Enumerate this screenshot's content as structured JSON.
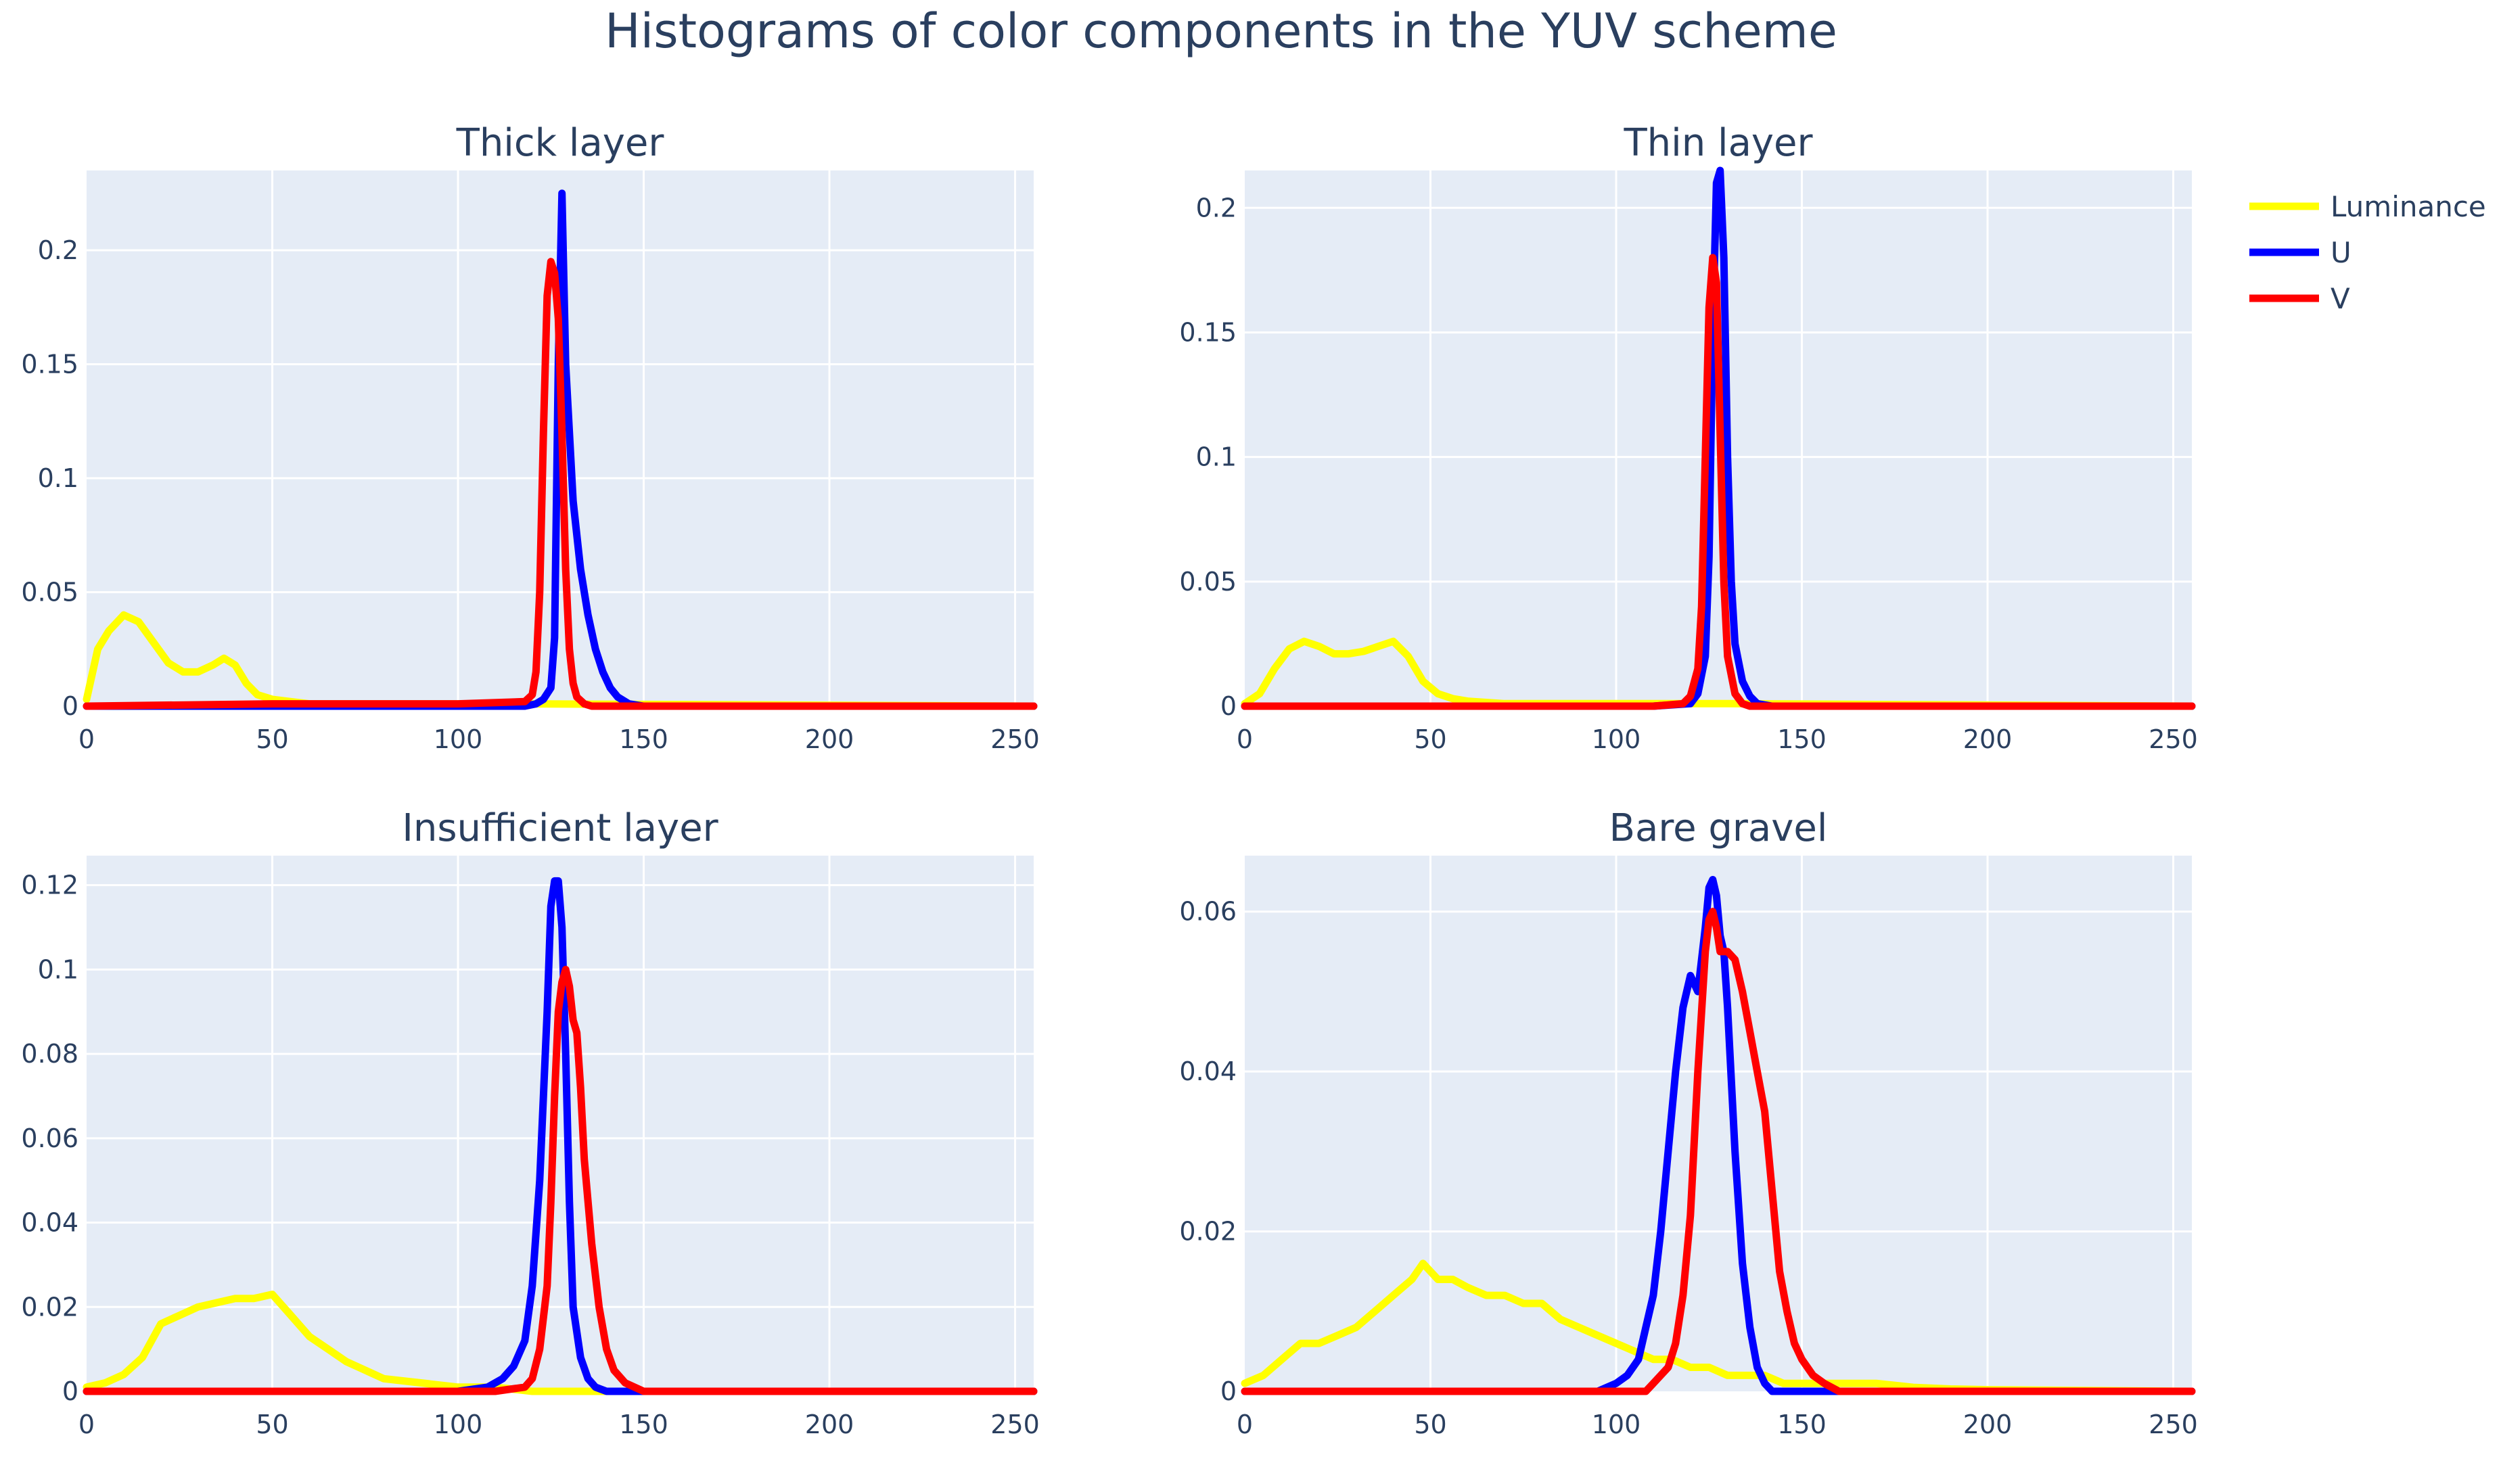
{
  "title": "Histograms of color components in the YUV scheme",
  "colors": {
    "luminance": "#ffff00",
    "u": "#0000ff",
    "v": "#ff0000",
    "plot_bg": "#e5ecf6",
    "grid": "#ffffff",
    "text": "#2a3f5f"
  },
  "legend": [
    {
      "name": "Luminance",
      "color": "#ffff00"
    },
    {
      "name": "U",
      "color": "#0000ff"
    },
    {
      "name": "V",
      "color": "#ff0000"
    }
  ],
  "chart_data": [
    {
      "type": "line",
      "title": "Thick layer",
      "xlim": [
        0,
        255
      ],
      "ylim": [
        0,
        0.235
      ],
      "x_ticks": [
        0,
        50,
        100,
        150,
        200,
        250
      ],
      "y_ticks": [
        0,
        0.05,
        0.1,
        0.15,
        0.2
      ],
      "y_tick_labels": [
        "0",
        "0.05",
        "0.1",
        "0.15",
        "0.2"
      ],
      "series": [
        {
          "name": "Luminance",
          "color": "#ffff00",
          "x": [
            0,
            3,
            6,
            10,
            14,
            18,
            22,
            26,
            30,
            34,
            37,
            40,
            43,
            46,
            50,
            55,
            60,
            80,
            100,
            120,
            255
          ],
          "y": [
            0.003,
            0.025,
            0.033,
            0.04,
            0.037,
            0.028,
            0.019,
            0.015,
            0.015,
            0.018,
            0.021,
            0.018,
            0.01,
            0.005,
            0.003,
            0.002,
            0.001,
            0.001,
            0.001,
            0.001,
            0.0
          ]
        },
        {
          "name": "U",
          "color": "#0000ff",
          "x": [
            0,
            100,
            118,
            121,
            123,
            125,
            126,
            127,
            128,
            129,
            131,
            133,
            135,
            137,
            139,
            141,
            143,
            146,
            150,
            255
          ],
          "y": [
            0.0,
            0.0,
            0.0,
            0.001,
            0.003,
            0.008,
            0.03,
            0.15,
            0.225,
            0.15,
            0.09,
            0.06,
            0.04,
            0.025,
            0.015,
            0.008,
            0.004,
            0.001,
            0.0,
            0.0
          ]
        },
        {
          "name": "V",
          "color": "#ff0000",
          "x": [
            0,
            50,
            100,
            118,
            120,
            121,
            122,
            123,
            124,
            125,
            126,
            127,
            128,
            129,
            130,
            131,
            132,
            134,
            136,
            255
          ],
          "y": [
            0.0,
            0.001,
            0.001,
            0.002,
            0.005,
            0.015,
            0.05,
            0.12,
            0.18,
            0.195,
            0.19,
            0.17,
            0.12,
            0.06,
            0.025,
            0.01,
            0.004,
            0.001,
            0.0,
            0.0
          ]
        }
      ]
    },
    {
      "type": "line",
      "title": "Thin layer",
      "xlim": [
        0,
        255
      ],
      "ylim": [
        0,
        0.215
      ],
      "x_ticks": [
        0,
        50,
        100,
        150,
        200,
        250
      ],
      "y_ticks": [
        0,
        0.05,
        0.1,
        0.15,
        0.2
      ],
      "y_tick_labels": [
        "0",
        "0.05",
        "0.1",
        "0.15",
        "0.2"
      ],
      "series": [
        {
          "name": "Luminance",
          "color": "#ffff00",
          "x": [
            0,
            4,
            8,
            12,
            16,
            20,
            24,
            28,
            32,
            36,
            40,
            44,
            48,
            52,
            56,
            60,
            70,
            90,
            110,
            130,
            255
          ],
          "y": [
            0.001,
            0.005,
            0.015,
            0.023,
            0.026,
            0.024,
            0.021,
            0.021,
            0.022,
            0.024,
            0.026,
            0.02,
            0.01,
            0.005,
            0.003,
            0.002,
            0.001,
            0.001,
            0.001,
            0.001,
            0.0
          ]
        },
        {
          "name": "U",
          "color": "#0000ff",
          "x": [
            0,
            110,
            120,
            122,
            124,
            125,
            126,
            127,
            128,
            129,
            130,
            131,
            132,
            134,
            136,
            138,
            142,
            255
          ],
          "y": [
            0.0,
            0.0,
            0.001,
            0.005,
            0.02,
            0.06,
            0.15,
            0.21,
            0.215,
            0.18,
            0.1,
            0.05,
            0.025,
            0.01,
            0.004,
            0.001,
            0.0,
            0.0
          ]
        },
        {
          "name": "V",
          "color": "#ff0000",
          "x": [
            0,
            110,
            118,
            120,
            122,
            123,
            124,
            125,
            126,
            127,
            128,
            129,
            130,
            132,
            134,
            136,
            255
          ],
          "y": [
            0.0,
            0.0,
            0.001,
            0.004,
            0.015,
            0.04,
            0.1,
            0.16,
            0.18,
            0.17,
            0.11,
            0.05,
            0.02,
            0.005,
            0.001,
            0.0,
            0.0
          ]
        }
      ]
    },
    {
      "type": "line",
      "title": "Insufficient layer",
      "xlim": [
        0,
        255
      ],
      "ylim": [
        0,
        0.127
      ],
      "x_ticks": [
        0,
        50,
        100,
        150,
        200,
        250
      ],
      "y_ticks": [
        0,
        0.02,
        0.04,
        0.06,
        0.08,
        0.1,
        0.12
      ],
      "y_tick_labels": [
        "0",
        "0.02",
        "0.04",
        "0.06",
        "0.08",
        "0.1",
        "0.12"
      ],
      "series": [
        {
          "name": "Luminance",
          "color": "#ffff00",
          "x": [
            0,
            5,
            10,
            15,
            20,
            25,
            30,
            35,
            40,
            45,
            50,
            55,
            60,
            65,
            70,
            75,
            80,
            90,
            100,
            110,
            120,
            130,
            255
          ],
          "y": [
            0.001,
            0.002,
            0.004,
            0.008,
            0.016,
            0.018,
            0.02,
            0.021,
            0.022,
            0.022,
            0.023,
            0.018,
            0.013,
            0.01,
            0.007,
            0.005,
            0.003,
            0.002,
            0.001,
            0.001,
            0.0,
            0.0,
            0.0
          ]
        },
        {
          "name": "U",
          "color": "#0000ff",
          "x": [
            0,
            100,
            108,
            112,
            115,
            118,
            120,
            122,
            124,
            125,
            126,
            127,
            128,
            129,
            130,
            131,
            133,
            135,
            137,
            140,
            150,
            255
          ],
          "y": [
            0.0,
            0.0,
            0.001,
            0.003,
            0.006,
            0.012,
            0.025,
            0.05,
            0.09,
            0.115,
            0.121,
            0.121,
            0.11,
            0.08,
            0.045,
            0.02,
            0.008,
            0.003,
            0.001,
            0.0,
            0.0,
            0.0
          ]
        },
        {
          "name": "V",
          "color": "#ff0000",
          "x": [
            0,
            110,
            118,
            120,
            122,
            124,
            125,
            126,
            127,
            128,
            129,
            130,
            131,
            132,
            133,
            134,
            136,
            138,
            140,
            142,
            145,
            150,
            255
          ],
          "y": [
            0.0,
            0.0,
            0.001,
            0.003,
            0.01,
            0.025,
            0.045,
            0.07,
            0.09,
            0.097,
            0.1,
            0.096,
            0.088,
            0.085,
            0.072,
            0.055,
            0.035,
            0.02,
            0.01,
            0.005,
            0.002,
            0.0,
            0.0
          ]
        }
      ]
    },
    {
      "type": "line",
      "title": "Bare gravel",
      "xlim": [
        0,
        255
      ],
      "ylim": [
        0,
        0.067
      ],
      "x_ticks": [
        0,
        50,
        100,
        150,
        200,
        250
      ],
      "y_ticks": [
        0,
        0.02,
        0.04,
        0.06
      ],
      "y_tick_labels": [
        "0",
        "0.02",
        "0.04",
        "0.06"
      ],
      "series": [
        {
          "name": "Luminance",
          "color": "#ffff00",
          "x": [
            0,
            5,
            10,
            15,
            20,
            25,
            30,
            35,
            40,
            45,
            48,
            52,
            56,
            60,
            65,
            70,
            75,
            80,
            85,
            90,
            95,
            100,
            105,
            110,
            115,
            120,
            125,
            130,
            135,
            140,
            145,
            150,
            160,
            170,
            180,
            190,
            200,
            255
          ],
          "y": [
            0.001,
            0.002,
            0.004,
            0.006,
            0.006,
            0.007,
            0.008,
            0.01,
            0.012,
            0.014,
            0.016,
            0.014,
            0.014,
            0.013,
            0.012,
            0.012,
            0.011,
            0.011,
            0.009,
            0.008,
            0.007,
            0.006,
            0.005,
            0.004,
            0.004,
            0.003,
            0.003,
            0.002,
            0.002,
            0.002,
            0.001,
            0.001,
            0.001,
            0.001,
            0.0005,
            0.0003,
            0.0002,
            0.0
          ]
        },
        {
          "name": "U",
          "color": "#0000ff",
          "x": [
            0,
            95,
            100,
            103,
            106,
            108,
            110,
            112,
            114,
            116,
            118,
            120,
            122,
            124,
            125,
            126,
            127,
            128,
            129,
            130,
            132,
            134,
            136,
            138,
            140,
            142,
            145,
            150,
            255
          ],
          "y": [
            0.0,
            0.0,
            0.001,
            0.002,
            0.004,
            0.008,
            0.012,
            0.02,
            0.03,
            0.04,
            0.048,
            0.052,
            0.05,
            0.058,
            0.063,
            0.064,
            0.062,
            0.057,
            0.055,
            0.048,
            0.03,
            0.016,
            0.008,
            0.003,
            0.001,
            0.0,
            0.0,
            0.0,
            0.0
          ]
        },
        {
          "name": "V",
          "color": "#ff0000",
          "x": [
            0,
            100,
            108,
            110,
            112,
            114,
            116,
            118,
            120,
            122,
            124,
            125,
            126,
            127,
            128,
            130,
            132,
            134,
            136,
            138,
            140,
            142,
            144,
            146,
            148,
            150,
            153,
            156,
            160,
            255
          ],
          "y": [
            0.0,
            0.0,
            0.0,
            0.001,
            0.002,
            0.003,
            0.006,
            0.012,
            0.022,
            0.04,
            0.055,
            0.059,
            0.06,
            0.058,
            0.055,
            0.055,
            0.054,
            0.05,
            0.045,
            0.04,
            0.035,
            0.025,
            0.015,
            0.01,
            0.006,
            0.004,
            0.002,
            0.001,
            0.0,
            0.0
          ]
        }
      ]
    }
  ]
}
